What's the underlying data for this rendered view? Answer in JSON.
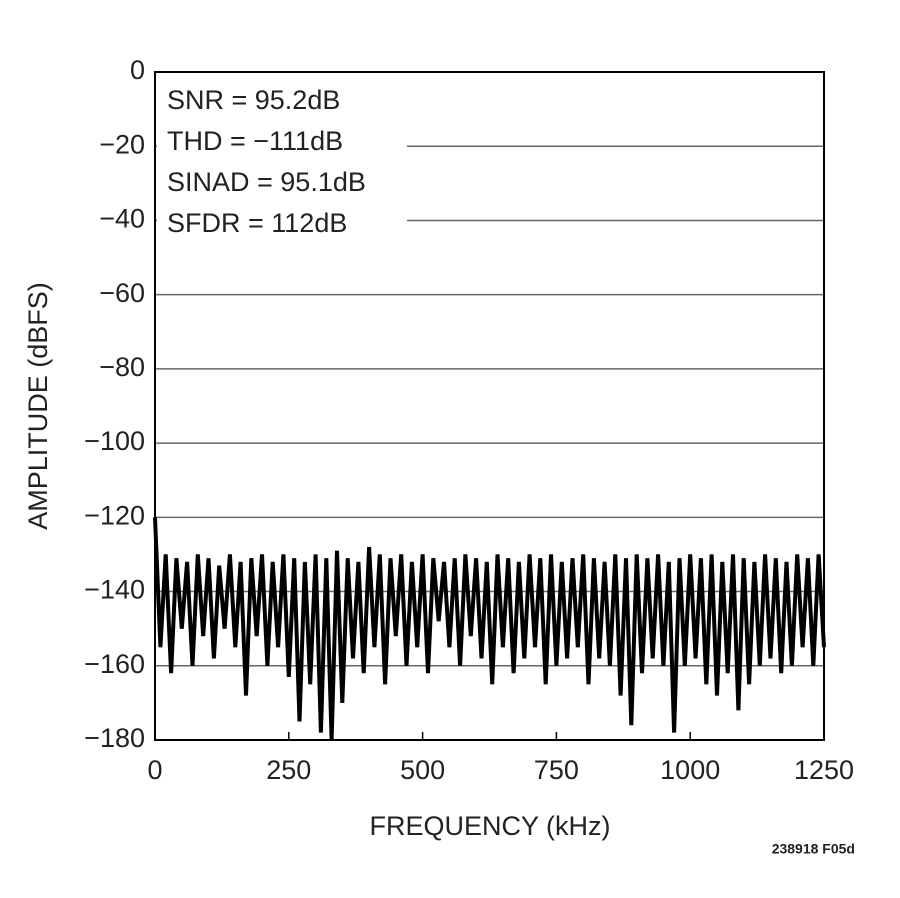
{
  "chart_data": {
    "type": "line",
    "ylabel": "AMPLITUDE (dBFS)",
    "xlabel": "FREQUENCY (kHz)",
    "annotations": [
      "SNR = 95.2dB",
      "THD = −111dB",
      "SINAD = 95.1dB",
      "SFDR = 112dB"
    ],
    "footnote": "238918 F05d",
    "color": "#000000",
    "grid": true,
    "xlim": [
      0,
      1250
    ],
    "xticks": [
      0,
      250,
      500,
      750,
      1000,
      1250
    ],
    "ylim": [
      -180,
      0
    ],
    "yticks": [
      0,
      {
        "value": -20,
        "label": "−20"
      },
      {
        "value": -40,
        "label": "−40"
      },
      {
        "value": -60,
        "label": "−60"
      },
      {
        "value": -80,
        "label": "−80"
      },
      {
        "value": -100,
        "label": "−100"
      },
      {
        "value": -120,
        "label": "−120"
      },
      {
        "value": -140,
        "label": "−140"
      },
      {
        "value": -160,
        "label": "−160"
      },
      {
        "value": -180,
        "label": "−180"
      }
    ],
    "x": [
      0,
      10,
      20,
      30,
      40,
      50,
      60,
      70,
      80,
      90,
      100,
      110,
      120,
      130,
      140,
      150,
      160,
      170,
      180,
      190,
      200,
      210,
      220,
      230,
      240,
      250,
      260,
      270,
      280,
      290,
      300,
      310,
      320,
      330,
      340,
      350,
      360,
      370,
      380,
      390,
      400,
      410,
      420,
      430,
      440,
      450,
      460,
      470,
      480,
      490,
      500,
      510,
      520,
      530,
      540,
      550,
      560,
      570,
      580,
      590,
      600,
      610,
      620,
      630,
      640,
      650,
      660,
      670,
      680,
      690,
      700,
      710,
      720,
      730,
      740,
      750,
      760,
      770,
      780,
      790,
      800,
      810,
      820,
      830,
      840,
      850,
      860,
      870,
      880,
      890,
      900,
      910,
      920,
      930,
      940,
      950,
      960,
      970,
      980,
      990,
      1000,
      1010,
      1020,
      1030,
      1040,
      1050,
      1060,
      1070,
      1080,
      1090,
      1100,
      1110,
      1120,
      1130,
      1140,
      1150,
      1160,
      1170,
      1180,
      1190,
      1200,
      1210,
      1220,
      1230,
      1240,
      1250
    ],
    "values": [
      -120,
      -155,
      -130,
      -162,
      -131,
      -150,
      -132,
      -160,
      -130,
      -152,
      -131,
      -158,
      -133,
      -150,
      -130,
      -155,
      -132,
      -168,
      -131,
      -152,
      -130,
      -160,
      -132,
      -155,
      -130,
      -163,
      -131,
      -175,
      -132,
      -165,
      -130,
      -178,
      -131,
      -180,
      -129,
      -170,
      -131,
      -158,
      -132,
      -162,
      -128,
      -155,
      -130,
      -165,
      -131,
      -152,
      -130,
      -160,
      -132,
      -155,
      -130,
      -162,
      -131,
      -148,
      -132,
      -155,
      -131,
      -160,
      -130,
      -152,
      -131,
      -158,
      -132,
      -165,
      -130,
      -155,
      -131,
      -162,
      -132,
      -158,
      -130,
      -155,
      -131,
      -165,
      -130,
      -160,
      -132,
      -158,
      -131,
      -155,
      -130,
      -165,
      -131,
      -158,
      -132,
      -160,
      -130,
      -168,
      -131,
      -176,
      -130,
      -162,
      -131,
      -158,
      -130,
      -160,
      -132,
      -178,
      -131,
      -160,
      -130,
      -158,
      -131,
      -165,
      -130,
      -168,
      -132,
      -162,
      -130,
      -172,
      -131,
      -165,
      -132,
      -160,
      -130,
      -158,
      -131,
      -162,
      -132,
      -160,
      -130,
      -155,
      -131,
      -160,
      -130,
      -155
    ]
  }
}
